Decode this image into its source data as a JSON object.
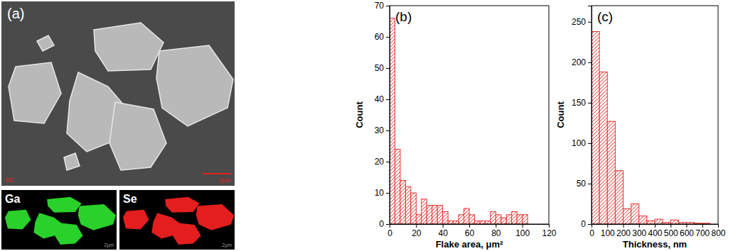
{
  "image_panel": {
    "label": "(a)",
    "scale_bar": "2μm",
    "detector": "SE",
    "maps": [
      {
        "element": "Ga"
      },
      {
        "element": "Se"
      }
    ]
  },
  "chart_data": [
    {
      "type": "histogram",
      "panel_label": "(b)",
      "x_label": "Flake area, μm²",
      "y_label": "Count",
      "bins": [
        0,
        4,
        8,
        12,
        16,
        20,
        24,
        28,
        32,
        36,
        40,
        44,
        48,
        52,
        56,
        60,
        64,
        68,
        72,
        76,
        80,
        84,
        88,
        92,
        96,
        100,
        104
      ],
      "values": [
        66,
        24,
        14,
        12,
        10,
        3,
        8,
        6,
        6,
        6,
        4,
        1,
        1,
        3,
        5,
        3,
        1,
        1,
        1,
        4,
        3,
        2,
        3,
        4,
        3,
        3
      ],
      "color": "#e8312f",
      "xlim": [
        0,
        120
      ],
      "xticks": [
        0,
        20,
        40,
        60,
        80,
        100,
        120
      ],
      "ylim": [
        0,
        70
      ],
      "yticks": [
        0,
        10,
        20,
        30,
        40,
        50,
        60,
        70
      ]
    },
    {
      "type": "histogram",
      "panel_label": "(c)",
      "x_label": "Thickness, nm",
      "y_label": "Count",
      "bins": [
        0,
        50,
        100,
        150,
        200,
        250,
        300,
        350,
        400,
        450,
        500,
        550,
        600,
        650,
        700,
        750
      ],
      "values": [
        238,
        188,
        127,
        66,
        19,
        25,
        10,
        4,
        6,
        2,
        5,
        2,
        2,
        1,
        1
      ],
      "color": "#e8312f",
      "xlim": [
        0,
        800
      ],
      "xticks": [
        0,
        100,
        200,
        300,
        400,
        500,
        600,
        700,
        800
      ],
      "ylim": [
        0,
        270
      ],
      "yticks": [
        0,
        50,
        100,
        150,
        200,
        250
      ]
    }
  ]
}
